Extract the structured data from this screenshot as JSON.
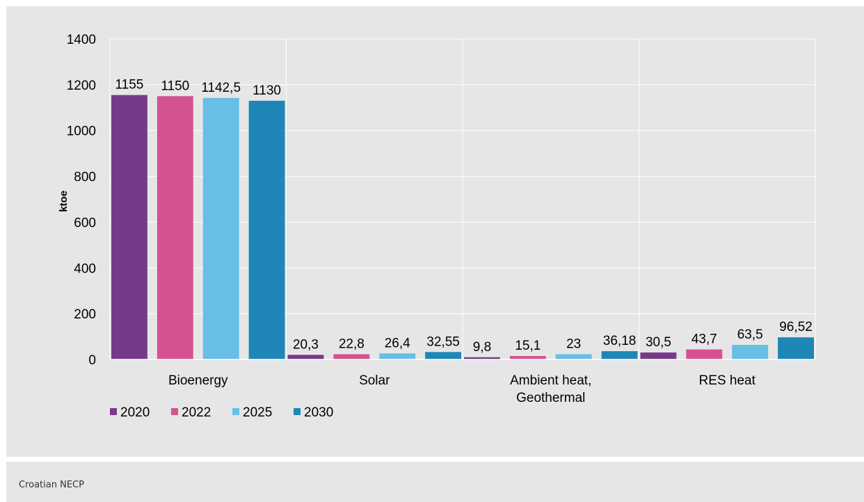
{
  "source": "Croatian NECP",
  "chart_data": {
    "type": "bar",
    "categories": [
      [
        "Bioenergy"
      ],
      [
        "Solar"
      ],
      [
        "Ambient heat,",
        "Geothermal"
      ],
      [
        "RES heat"
      ]
    ],
    "series": [
      {
        "name": "2020",
        "values": [
          1155,
          20.3,
          9.8,
          30.5
        ],
        "labels": [
          "1155",
          "20,3",
          "9,8",
          "30,5"
        ],
        "color": "#763b88"
      },
      {
        "name": "2022",
        "values": [
          1150,
          22.8,
          15.1,
          43.7
        ],
        "labels": [
          "1150",
          "22,8",
          "15,1",
          "43,7"
        ],
        "color": "#d4528f"
      },
      {
        "name": "2025",
        "values": [
          1142.5,
          26.4,
          23,
          63.5
        ],
        "labels": [
          "1142,5",
          "26,4",
          "23",
          "63,5"
        ],
        "color": "#67bfe6"
      },
      {
        "name": "2030",
        "values": [
          1130,
          32.55,
          36.18,
          96.52
        ],
        "labels": [
          "1130",
          "32,55",
          "36,18",
          "96,52"
        ],
        "color": "#1f86b8"
      }
    ],
    "ylabel": "ktoe",
    "ylim": [
      0,
      1400
    ],
    "yticks": [
      0,
      200,
      400,
      600,
      800,
      1000,
      1200,
      1400
    ],
    "grid": true,
    "legend": "bottom-left"
  }
}
